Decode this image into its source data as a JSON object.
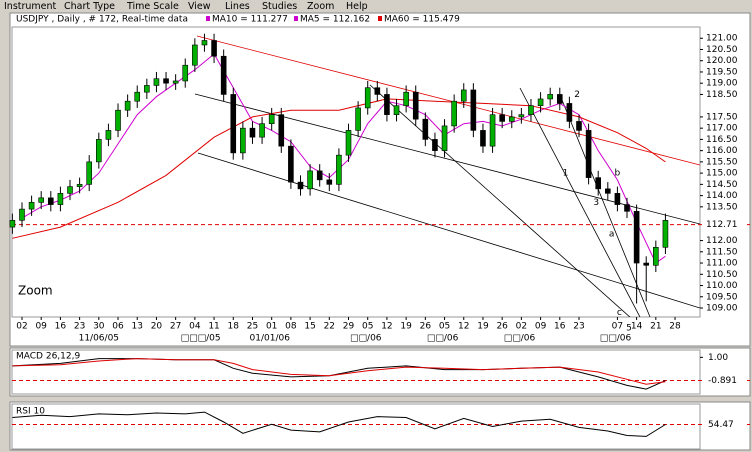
{
  "menu": [
    "Instrument",
    "Chart Type",
    "Time Scale",
    "View",
    "Lines",
    "Studies",
    "Zoom",
    "Help"
  ],
  "zoom_label": "Zoom",
  "chart_data": [
    {
      "type": "candlestick",
      "title": "USDJPY , Daily , # 172, Real-time data",
      "extra_labels": [
        {
          "text": "MA5 = 112.162",
          "color": "#d000d0"
        }
      ],
      "up_color": "#00b000",
      "down_color": "#000000",
      "xlim": [
        -0.52,
        35.3
      ],
      "ylim": [
        108.6,
        121.5
      ],
      "xticks": [
        {
          "value": 0,
          "label": "02"
        },
        {
          "value": 1,
          "label": "09"
        },
        {
          "value": 2,
          "label": "16"
        },
        {
          "value": 3,
          "label": "23"
        },
        {
          "value": 4,
          "label": "30"
        },
        {
          "value": 5,
          "label": "06"
        },
        {
          "value": 6,
          "label": "13"
        },
        {
          "value": 7,
          "label": "20"
        },
        {
          "value": 8,
          "label": "27"
        },
        {
          "value": 9,
          "label": "04"
        },
        {
          "value": 10,
          "label": "11"
        },
        {
          "value": 11,
          "label": "18"
        },
        {
          "value": 12,
          "label": "25"
        },
        {
          "value": 13,
          "label": "01"
        },
        {
          "value": 14,
          "label": "08"
        },
        {
          "value": 15,
          "label": "15"
        },
        {
          "value": 16,
          "label": "22"
        },
        {
          "value": 17,
          "label": "29"
        },
        {
          "value": 18,
          "label": "05"
        },
        {
          "value": 19,
          "label": "12"
        },
        {
          "value": 20,
          "label": "19"
        },
        {
          "value": 21,
          "label": "26"
        },
        {
          "value": 22,
          "label": "05"
        },
        {
          "value": 23,
          "label": "12"
        },
        {
          "value": 24,
          "label": "19"
        },
        {
          "value": 25,
          "label": "26"
        },
        {
          "value": 26,
          "label": "02"
        },
        {
          "value": 27,
          "label": "09"
        },
        {
          "value": 28,
          "label": "16"
        },
        {
          "value": 29,
          "label": "23"
        },
        {
          "value": 31,
          "label": "07"
        },
        {
          "value": 32,
          "label": "14"
        },
        {
          "value": 33,
          "label": "21"
        },
        {
          "value": 34,
          "label": "28"
        }
      ],
      "month_ticks": [
        {
          "value": 4,
          "label": "11/06/05"
        },
        {
          "value": 9.3,
          "label": "□□□/05"
        },
        {
          "value": 12.9,
          "label": "01/01/06"
        },
        {
          "value": 17.9,
          "label": "□□/06"
        },
        {
          "value": 21.9,
          "label": "□□/06"
        },
        {
          "value": 25.9,
          "label": "□□/06"
        },
        {
          "value": 30.9,
          "label": "□□/06"
        }
      ],
      "yticks": [
        {
          "value": 121,
          "label": "121.00"
        },
        {
          "value": 120.5,
          "label": "120.50"
        },
        {
          "value": 120,
          "label": "120.00"
        },
        {
          "value": 119.5,
          "label": "119.50"
        },
        {
          "value": 119,
          "label": "119.00"
        },
        {
          "value": 118.5,
          "label": "118.50"
        },
        {
          "value": 117.5,
          "label": "117.50"
        },
        {
          "value": 117,
          "label": "117.00"
        },
        {
          "value": 116.5,
          "label": "116.50"
        },
        {
          "value": 116,
          "label": "116.00"
        },
        {
          "value": 115.5,
          "label": "115.50"
        },
        {
          "value": 115,
          "label": "115.00"
        },
        {
          "value": 114.5,
          "label": "114.50"
        },
        {
          "value": 114,
          "label": "114.00"
        },
        {
          "value": 113.5,
          "label": "113.50"
        },
        {
          "value": 112,
          "label": "112.00"
        },
        {
          "value": 111.5,
          "label": "111.50"
        },
        {
          "value": 111,
          "label": "111.00"
        },
        {
          "value": 110.5,
          "label": "110.50"
        },
        {
          "value": 110,
          "label": "110.00"
        },
        {
          "value": 109.5,
          "label": "109.50"
        },
        {
          "value": 109,
          "label": "109.00"
        }
      ],
      "reference_line": {
        "value": 112.71,
        "label": "112.71",
        "color": "#e00000"
      },
      "candles": {
        "x": [
          -0.5,
          0,
          0.5,
          1,
          1.5,
          2,
          2.5,
          3,
          3.5,
          4,
          4.5,
          5,
          5.5,
          6,
          6.5,
          7,
          7.5,
          8,
          8.5,
          9,
          9.5,
          10,
          10.5,
          11,
          11.5,
          12,
          12.5,
          13,
          13.5,
          14,
          14.5,
          15,
          15.5,
          16,
          16.5,
          17,
          17.5,
          18,
          18.5,
          19,
          19.5,
          20,
          20.5,
          21,
          21.5,
          22,
          22.5,
          23,
          23.5,
          24,
          24.5,
          25,
          25.5,
          26,
          26.5,
          27,
          27.5,
          28,
          28.5,
          29,
          29.5,
          30,
          30.5,
          31,
          31.5,
          32,
          32.5,
          33,
          33.5
        ],
        "open": [
          112.6,
          112.9,
          113.4,
          113.7,
          113.9,
          113.6,
          114.1,
          114.4,
          114.5,
          115.5,
          116.5,
          116.9,
          117.8,
          118.2,
          118.6,
          118.9,
          119.2,
          119.0,
          119.1,
          119.8,
          120.7,
          120.9,
          120.2,
          118.5,
          115.9,
          117.0,
          116.6,
          117.2,
          117.6,
          116.2,
          114.6,
          114.3,
          115.1,
          114.7,
          114.5,
          115.8,
          116.9,
          117.9,
          118.8,
          118.5,
          117.6,
          118.0,
          118.6,
          117.4,
          116.5,
          116.0,
          117.1,
          118.2,
          118.7,
          116.9,
          116.2,
          117.6,
          117.3,
          117.5,
          117.6,
          118.0,
          118.3,
          118.5,
          118.1,
          117.3,
          116.9,
          114.8,
          114.3,
          114.1,
          113.6,
          113.3,
          111.0,
          110.9,
          111.7
        ],
        "high": [
          113.2,
          113.7,
          114.0,
          114.2,
          114.2,
          114.4,
          114.7,
          114.8,
          115.8,
          116.8,
          117.2,
          118.1,
          118.5,
          118.9,
          119.2,
          119.5,
          119.5,
          119.4,
          120.1,
          121.0,
          121.2,
          121.2,
          120.5,
          118.8,
          117.3,
          117.3,
          117.5,
          117.9,
          117.9,
          116.5,
          114.9,
          115.4,
          115.4,
          115.0,
          116.1,
          117.2,
          118.2,
          119.1,
          119.1,
          118.8,
          118.3,
          118.9,
          118.9,
          117.7,
          116.8,
          117.4,
          118.5,
          119.0,
          119.0,
          117.2,
          117.9,
          117.9,
          117.8,
          117.9,
          118.3,
          118.6,
          118.8,
          118.8,
          118.4,
          117.6,
          117.2,
          115.1,
          114.6,
          114.4,
          113.9,
          113.6,
          111.3,
          112.0,
          113.2
        ],
        "low": [
          112.3,
          112.6,
          113.1,
          113.4,
          113.3,
          113.3,
          113.8,
          114.1,
          114.2,
          115.2,
          116.2,
          116.6,
          117.5,
          117.9,
          118.3,
          118.6,
          118.7,
          118.7,
          118.8,
          119.5,
          120.4,
          119.9,
          118.2,
          115.6,
          115.6,
          116.3,
          116.3,
          116.9,
          115.9,
          114.3,
          114.0,
          114.0,
          114.4,
          114.2,
          114.2,
          115.5,
          116.6,
          117.6,
          118.2,
          117.3,
          117.3,
          117.7,
          117.1,
          116.2,
          115.7,
          115.7,
          116.8,
          117.9,
          116.6,
          115.9,
          115.9,
          117.0,
          117.0,
          117.2,
          117.3,
          117.7,
          118.0,
          117.8,
          117.0,
          116.6,
          114.5,
          114.0,
          113.8,
          113.3,
          113.0,
          109.2,
          109.3,
          110.6,
          111.4
        ],
        "close": [
          112.9,
          113.4,
          113.7,
          113.9,
          113.6,
          114.1,
          114.4,
          114.5,
          115.5,
          116.5,
          116.9,
          117.8,
          118.2,
          118.6,
          118.9,
          119.2,
          119.0,
          119.1,
          119.8,
          120.7,
          120.9,
          120.2,
          118.5,
          115.9,
          117.0,
          116.6,
          117.2,
          117.6,
          116.2,
          114.6,
          114.3,
          115.1,
          114.7,
          114.5,
          115.8,
          116.9,
          117.9,
          118.8,
          118.5,
          117.6,
          118.0,
          118.6,
          117.4,
          116.5,
          116.0,
          117.1,
          118.2,
          118.7,
          116.9,
          116.2,
          117.6,
          117.3,
          117.5,
          117.6,
          118.0,
          118.3,
          118.5,
          118.1,
          117.3,
          116.9,
          114.8,
          114.3,
          114.1,
          113.6,
          113.3,
          111.0,
          110.9,
          111.7,
          112.9
        ]
      },
      "series": [
        {
          "name": "MA10 = 111.277",
          "color": "#d000d0",
          "x": [
            0,
            1,
            2,
            3,
            4,
            5,
            6,
            7,
            8,
            9,
            10,
            11,
            12,
            13,
            14,
            15,
            16,
            17,
            18,
            19,
            20,
            21,
            22,
            23,
            24,
            25,
            26,
            27,
            28,
            29,
            30,
            31,
            32,
            33,
            33.5
          ],
          "values": [
            113.0,
            113.5,
            113.8,
            114.2,
            115.0,
            116.3,
            117.6,
            118.4,
            119.0,
            119.6,
            120.3,
            118.8,
            117.3,
            116.9,
            116.4,
            115.3,
            114.8,
            115.6,
            117.2,
            118.2,
            118.0,
            117.6,
            116.7,
            117.2,
            117.3,
            117.1,
            117.4,
            117.8,
            118.1,
            117.6,
            116.0,
            114.7,
            112.8,
            111.0,
            111.3
          ]
        },
        {
          "name": "MA60 = 115.479",
          "color": "#e00000",
          "x": [
            -0.5,
            2,
            5,
            7.5,
            10,
            12,
            14,
            16.5,
            19,
            21.5,
            24,
            26.5,
            29,
            31,
            32.5,
            33.5
          ],
          "values": [
            112.1,
            112.6,
            113.7,
            114.9,
            116.6,
            117.5,
            117.8,
            117.8,
            118.3,
            118.2,
            118.1,
            118.0,
            117.5,
            116.8,
            116.1,
            115.5
          ]
        }
      ],
      "annotations": [
        {
          "text": "1",
          "x": 28.3,
          "y": 115.0
        },
        {
          "text": "2",
          "x": 28.9,
          "y": 118.5
        },
        {
          "text": "3",
          "x": 29.9,
          "y": 113.7
        },
        {
          "text": "a",
          "x": 30.7,
          "y": 112.3
        },
        {
          "text": "b",
          "x": 31.0,
          "y": 115.0
        },
        {
          "text": "d",
          "x": 32.0,
          "y": 112.0
        },
        {
          "text": "c",
          "x": 31.1,
          "y": 108.8
        },
        {
          "text": "5",
          "x": 31.6,
          "y": 108.1
        }
      ]
    },
    {
      "type": "line",
      "title": "MACD 26,12,9",
      "xlim": [
        -0.52,
        35.3
      ],
      "ylim": [
        -2.0,
        1.6
      ],
      "yticks": [
        {
          "value": 1,
          "label": "1.00",
          "color": "#000000"
        },
        {
          "value": -0.891,
          "label": "-0.891",
          "color": "#e00000"
        }
      ],
      "series": [
        {
          "color": "#000000",
          "x": [
            -0.5,
            2,
            4,
            6,
            8,
            10,
            11,
            12,
            14,
            16,
            18,
            20,
            22,
            24,
            26,
            28,
            30,
            31.5,
            32.5,
            33.5
          ],
          "values": [
            0.3,
            0.5,
            0.9,
            0.9,
            0.8,
            0.8,
            0.1,
            -0.3,
            -0.6,
            -0.5,
            0.1,
            0.3,
            0.0,
            0.0,
            0.1,
            0.2,
            -0.6,
            -1.3,
            -1.6,
            -0.9
          ]
        },
        {
          "color": "#e00000",
          "x": [
            -0.5,
            2,
            4,
            6,
            8,
            10,
            11,
            12,
            14,
            16,
            18,
            20,
            22,
            24,
            26,
            28,
            30,
            31.5,
            32.5,
            33.5
          ],
          "values": [
            0.3,
            0.4,
            0.7,
            0.9,
            0.8,
            0.8,
            0.5,
            0.0,
            -0.4,
            -0.5,
            -0.1,
            0.2,
            0.1,
            0.0,
            0.1,
            0.2,
            -0.2,
            -0.8,
            -1.2,
            -1.0
          ]
        }
      ]
    },
    {
      "type": "line",
      "title": "RSI 10",
      "xlim": [
        -0.52,
        35.3
      ],
      "ylim": [
        0,
        100
      ],
      "yticks": [
        {
          "value": 54.47,
          "label": "54.47",
          "color": "#e00000"
        }
      ],
      "series": [
        {
          "color": "#000000",
          "x": [
            -0.5,
            1,
            2.5,
            4,
            5.5,
            7,
            8.5,
            9.5,
            10.5,
            11.5,
            13,
            14,
            15.5,
            17,
            18.5,
            20,
            21.5,
            23,
            24.5,
            26,
            27.5,
            29,
            30.5,
            31.5,
            32.5,
            33.5
          ],
          "values": [
            70,
            75,
            72,
            78,
            76,
            80,
            78,
            82,
            60,
            35,
            55,
            42,
            38,
            60,
            72,
            70,
            45,
            68,
            50,
            62,
            66,
            48,
            40,
            30,
            28,
            54.47
          ]
        }
      ]
    }
  ]
}
